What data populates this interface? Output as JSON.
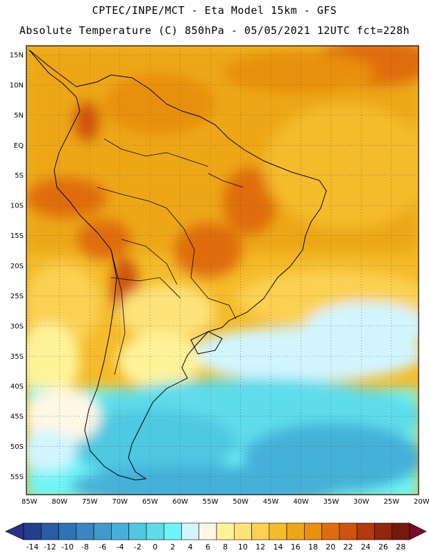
{
  "header": {
    "line1": "CPTEC/INPE/MCT -  Eta Model 15km - GFS",
    "line2": "Absolute Temperature (C) 850hPa - 05/05/2021 12UTC fct=228h"
  },
  "map": {
    "lat_labels": [
      "15N",
      "10N",
      "5N",
      "EQ",
      "5S",
      "10S",
      "15S",
      "20S",
      "25S",
      "30S",
      "35S",
      "40S",
      "45S",
      "50S",
      "55S"
    ],
    "lon_labels": [
      "85W",
      "80W",
      "75W",
      "70W",
      "65W",
      "60W",
      "55W",
      "50W",
      "45W",
      "40W",
      "35W",
      "30W",
      "25W",
      "20W"
    ],
    "lat_range": [
      -58,
      16.5
    ],
    "lon_range": [
      -85.5,
      -20.5
    ],
    "grid": true
  },
  "colorbar": {
    "tick_labels": [
      "-14",
      "-12",
      "-10",
      "-8",
      "-6",
      "-4",
      "-2",
      "0",
      "2",
      "4",
      "6",
      "8",
      "10",
      "12",
      "14",
      "16",
      "18",
      "20",
      "22",
      "24",
      "26",
      "28"
    ],
    "colors": [
      "#213f8a",
      "#2a5ba3",
      "#2f72b5",
      "#3a86c2",
      "#3f9bce",
      "#45b1d9",
      "#50c8e2",
      "#5fdcea",
      "#6ff5f7",
      "#d2f5ff",
      "#fff7e6",
      "#fff39a",
      "#fde37a",
      "#fbd152",
      "#f4bb2a",
      "#eda716",
      "#e8900f",
      "#e06d0b",
      "#cf520e",
      "#b23a0c",
      "#92270c",
      "#751a0a"
    ],
    "under_color": "#2a2f8a",
    "over_color": "#7a0a2a"
  }
}
